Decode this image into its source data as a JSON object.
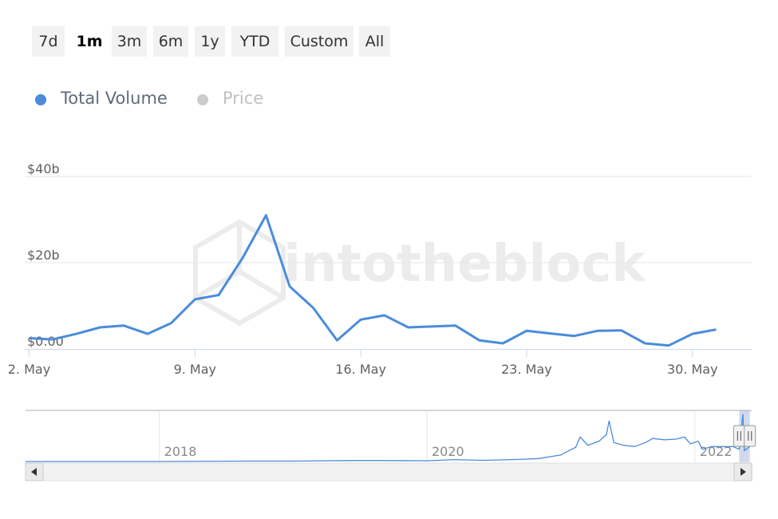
{
  "range_buttons": [
    {
      "label": "7d",
      "active": false
    },
    {
      "label": "1m",
      "active": true
    },
    {
      "label": "3m",
      "active": false
    },
    {
      "label": "6m",
      "active": false
    },
    {
      "label": "1y",
      "active": false
    },
    {
      "label": "YTD",
      "active": false
    },
    {
      "label": "Custom",
      "active": false
    },
    {
      "label": "All",
      "active": false
    }
  ],
  "legend": [
    {
      "label": "Total Volume",
      "color": "#4a8cdb",
      "text_color": "#5f6b7a"
    },
    {
      "label": "Price",
      "color": "#cccccc",
      "text_color": "#c0c0c0"
    }
  ],
  "watermark": "intotheblock",
  "colors": {
    "series": "#4a8cdb",
    "grid": "#e6e6e6",
    "navigator_handle_bg": "#f2f2f2"
  },
  "chart_data": {
    "type": "line",
    "series": [
      {
        "name": "Total Volume",
        "x": [
          "2022-05-02",
          "2022-05-03",
          "2022-05-04",
          "2022-05-05",
          "2022-05-06",
          "2022-05-07",
          "2022-05-08",
          "2022-05-09",
          "2022-05-10",
          "2022-05-11",
          "2022-05-12",
          "2022-05-13",
          "2022-05-14",
          "2022-05-15",
          "2022-05-16",
          "2022-05-17",
          "2022-05-18",
          "2022-05-19",
          "2022-05-20",
          "2022-05-21",
          "2022-05-22",
          "2022-05-23",
          "2022-05-24",
          "2022-05-25",
          "2022-05-26",
          "2022-05-27",
          "2022-05-28",
          "2022-05-29",
          "2022-05-30",
          "2022-05-31"
        ],
        "values": [
          2.5,
          2.2,
          3.5,
          5.0,
          5.4,
          3.5,
          6.0,
          11.5,
          12.5,
          21.0,
          31.0,
          14.5,
          9.5,
          2.0,
          6.8,
          7.8,
          5.0,
          5.2,
          5.4,
          2.0,
          1.3,
          4.2,
          3.6,
          3.0,
          4.2,
          4.3,
          1.3,
          0.8,
          3.5,
          4.5
        ]
      }
    ],
    "y_unit": "billions USD",
    "ylim": [
      0,
      40
    ],
    "y_ticks": [
      {
        "value": 0,
        "label": "$0.00"
      },
      {
        "value": 20,
        "label": "$20b"
      },
      {
        "value": 40,
        "label": "$40b"
      }
    ],
    "x_ticks": [
      {
        "date": "2022-05-02",
        "label": "2. May"
      },
      {
        "date": "2022-05-09",
        "label": "9. May"
      },
      {
        "date": "2022-05-16",
        "label": "16. May"
      },
      {
        "date": "2022-05-23",
        "label": "23. May"
      },
      {
        "date": "2022-05-30",
        "label": "30. May"
      }
    ],
    "grid": true,
    "legend_position": "top-left",
    "navigator": {
      "x_ticks": [
        {
          "date": "2018-01-01",
          "label": "2018"
        },
        {
          "date": "2020-01-01",
          "label": "2020"
        },
        {
          "date": "2022-01-01",
          "label": "2022"
        }
      ],
      "range": [
        "2017-01-01",
        "2022-06-05"
      ],
      "selected": [
        "2022-05-02",
        "2022-05-31"
      ],
      "series": {
        "x": [
          "2017-01-01",
          "2018-01-01",
          "2018-09-01",
          "2019-01-01",
          "2019-06-01",
          "2019-09-01",
          "2020-01-01",
          "2020-03-15",
          "2020-06-01",
          "2020-09-01",
          "2020-11-01",
          "2021-01-01",
          "2021-01-15",
          "2021-02-10",
          "2021-02-22",
          "2021-03-15",
          "2021-04-15",
          "2021-05-05",
          "2021-05-12",
          "2021-05-25",
          "2021-06-20",
          "2021-07-20",
          "2021-08-20",
          "2021-09-08",
          "2021-10-10",
          "2021-11-10",
          "2021-12-04",
          "2021-12-20",
          "2022-01-10",
          "2022-01-22",
          "2022-02-15",
          "2022-03-15",
          "2022-04-15",
          "2022-05-02",
          "2022-05-12",
          "2022-05-16",
          "2022-05-31"
        ],
        "values": [
          0.0,
          0.0,
          0.3,
          0.3,
          0.7,
          0.7,
          0.5,
          1.4,
          0.9,
          1.5,
          2.2,
          4.8,
          7.0,
          10.5,
          18.0,
          12.0,
          15.0,
          20.0,
          30.0,
          14.0,
          12.0,
          11.0,
          14.0,
          17.0,
          16.0,
          16.5,
          18.0,
          13.0,
          15.0,
          9.0,
          11.0,
          11.0,
          11.0,
          9.0,
          35.0,
          8.0,
          11.0
        ]
      }
    }
  }
}
